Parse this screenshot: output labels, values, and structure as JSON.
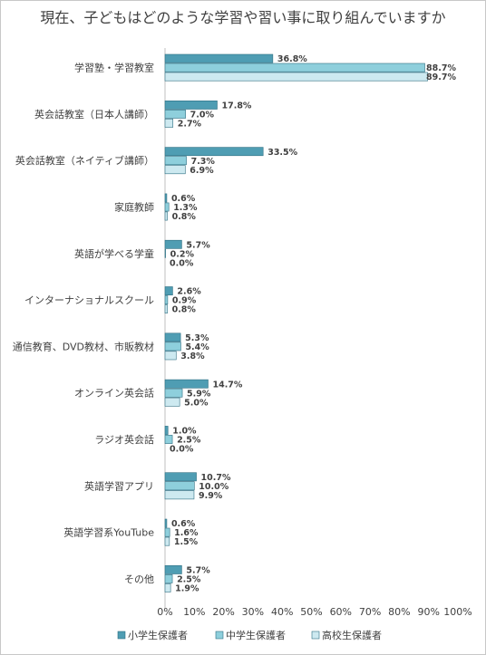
{
  "chart_data": {
    "type": "bar",
    "orientation": "horizontal",
    "title": "現在、子どもはどのような学習や習い事に取り組んでいますか",
    "categories": [
      "学習塾・学習教室",
      "英会話教室（日本人講師）",
      "英会話教室（ネイティブ講師）",
      "家庭教師",
      "英語が学べる学童",
      "インターナショナルスクール",
      "通信教育、DVD教材、市販教材",
      "オンライン英会話",
      "ラジオ英会話",
      "英語学習アプリ",
      "英語学習系YouTube",
      "その他"
    ],
    "series": [
      {
        "name": "小学生保護者",
        "color": "#4f9db3",
        "values": [
          36.8,
          17.8,
          33.5,
          0.6,
          5.7,
          2.6,
          5.3,
          14.7,
          1.0,
          10.7,
          0.6,
          5.7
        ]
      },
      {
        "name": "中学生保護者",
        "color": "#8ecfdc",
        "values": [
          88.7,
          7.0,
          7.3,
          1.3,
          0.2,
          0.9,
          5.4,
          5.9,
          2.5,
          10.0,
          1.6,
          2.5
        ]
      },
      {
        "name": "高校生保護者",
        "color": "#cde9f0",
        "values": [
          89.7,
          2.7,
          6.9,
          0.8,
          0.0,
          0.8,
          3.8,
          5.0,
          0.0,
          9.9,
          1.5,
          1.9
        ]
      }
    ],
    "xlim": [
      0,
      100
    ],
    "x_ticks": [
      "0%",
      "10%",
      "20%",
      "30%",
      "40%",
      "50%",
      "60%",
      "70%",
      "80%",
      "90%",
      "100%"
    ],
    "value_suffix": "%",
    "grid": false,
    "legend_position": "bottom"
  }
}
